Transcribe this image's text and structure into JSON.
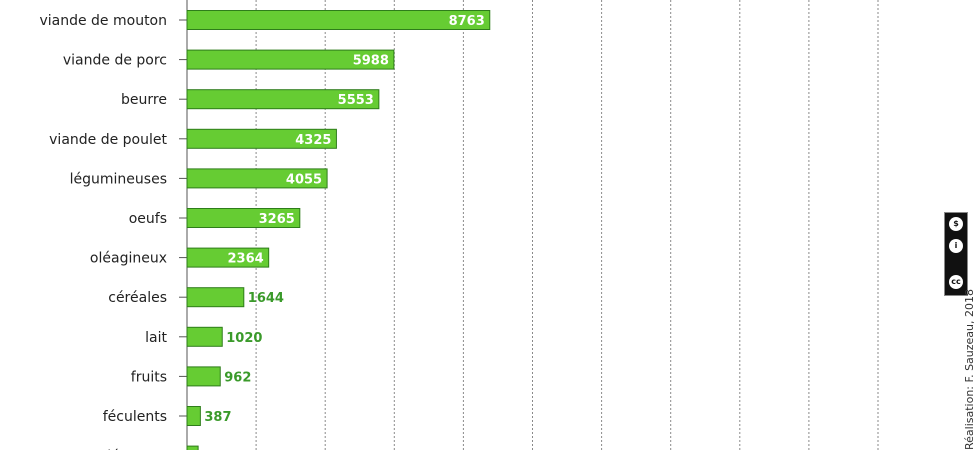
{
  "chart_data": {
    "type": "bar",
    "orientation": "horizontal",
    "categories": [
      "viande de mouton",
      "viande de porc",
      "beurre",
      "viande de poulet",
      "légumineuses",
      "oeufs",
      "oléagineux",
      "céréales",
      "lait",
      "fruits",
      "féculents",
      "légumes"
    ],
    "values": [
      8763,
      5988,
      5553,
      4325,
      4055,
      3265,
      2364,
      1644,
      1020,
      962,
      387,
      322
    ],
    "xlim": [
      0,
      22000
    ],
    "grid": true,
    "bar_color": "#66cc33",
    "bar_edge_color": "#2e7d1a",
    "label_inside_color": "#ffffff",
    "label_outside_color": "#3a9a2a"
  },
  "credit": "Réalisation: F. Sauzeau, 2018",
  "license_badge": {
    "icons": [
      "cc-icon",
      "by-icon",
      "nc-icon"
    ],
    "glyphs": [
      "cc",
      "i",
      "$"
    ]
  }
}
